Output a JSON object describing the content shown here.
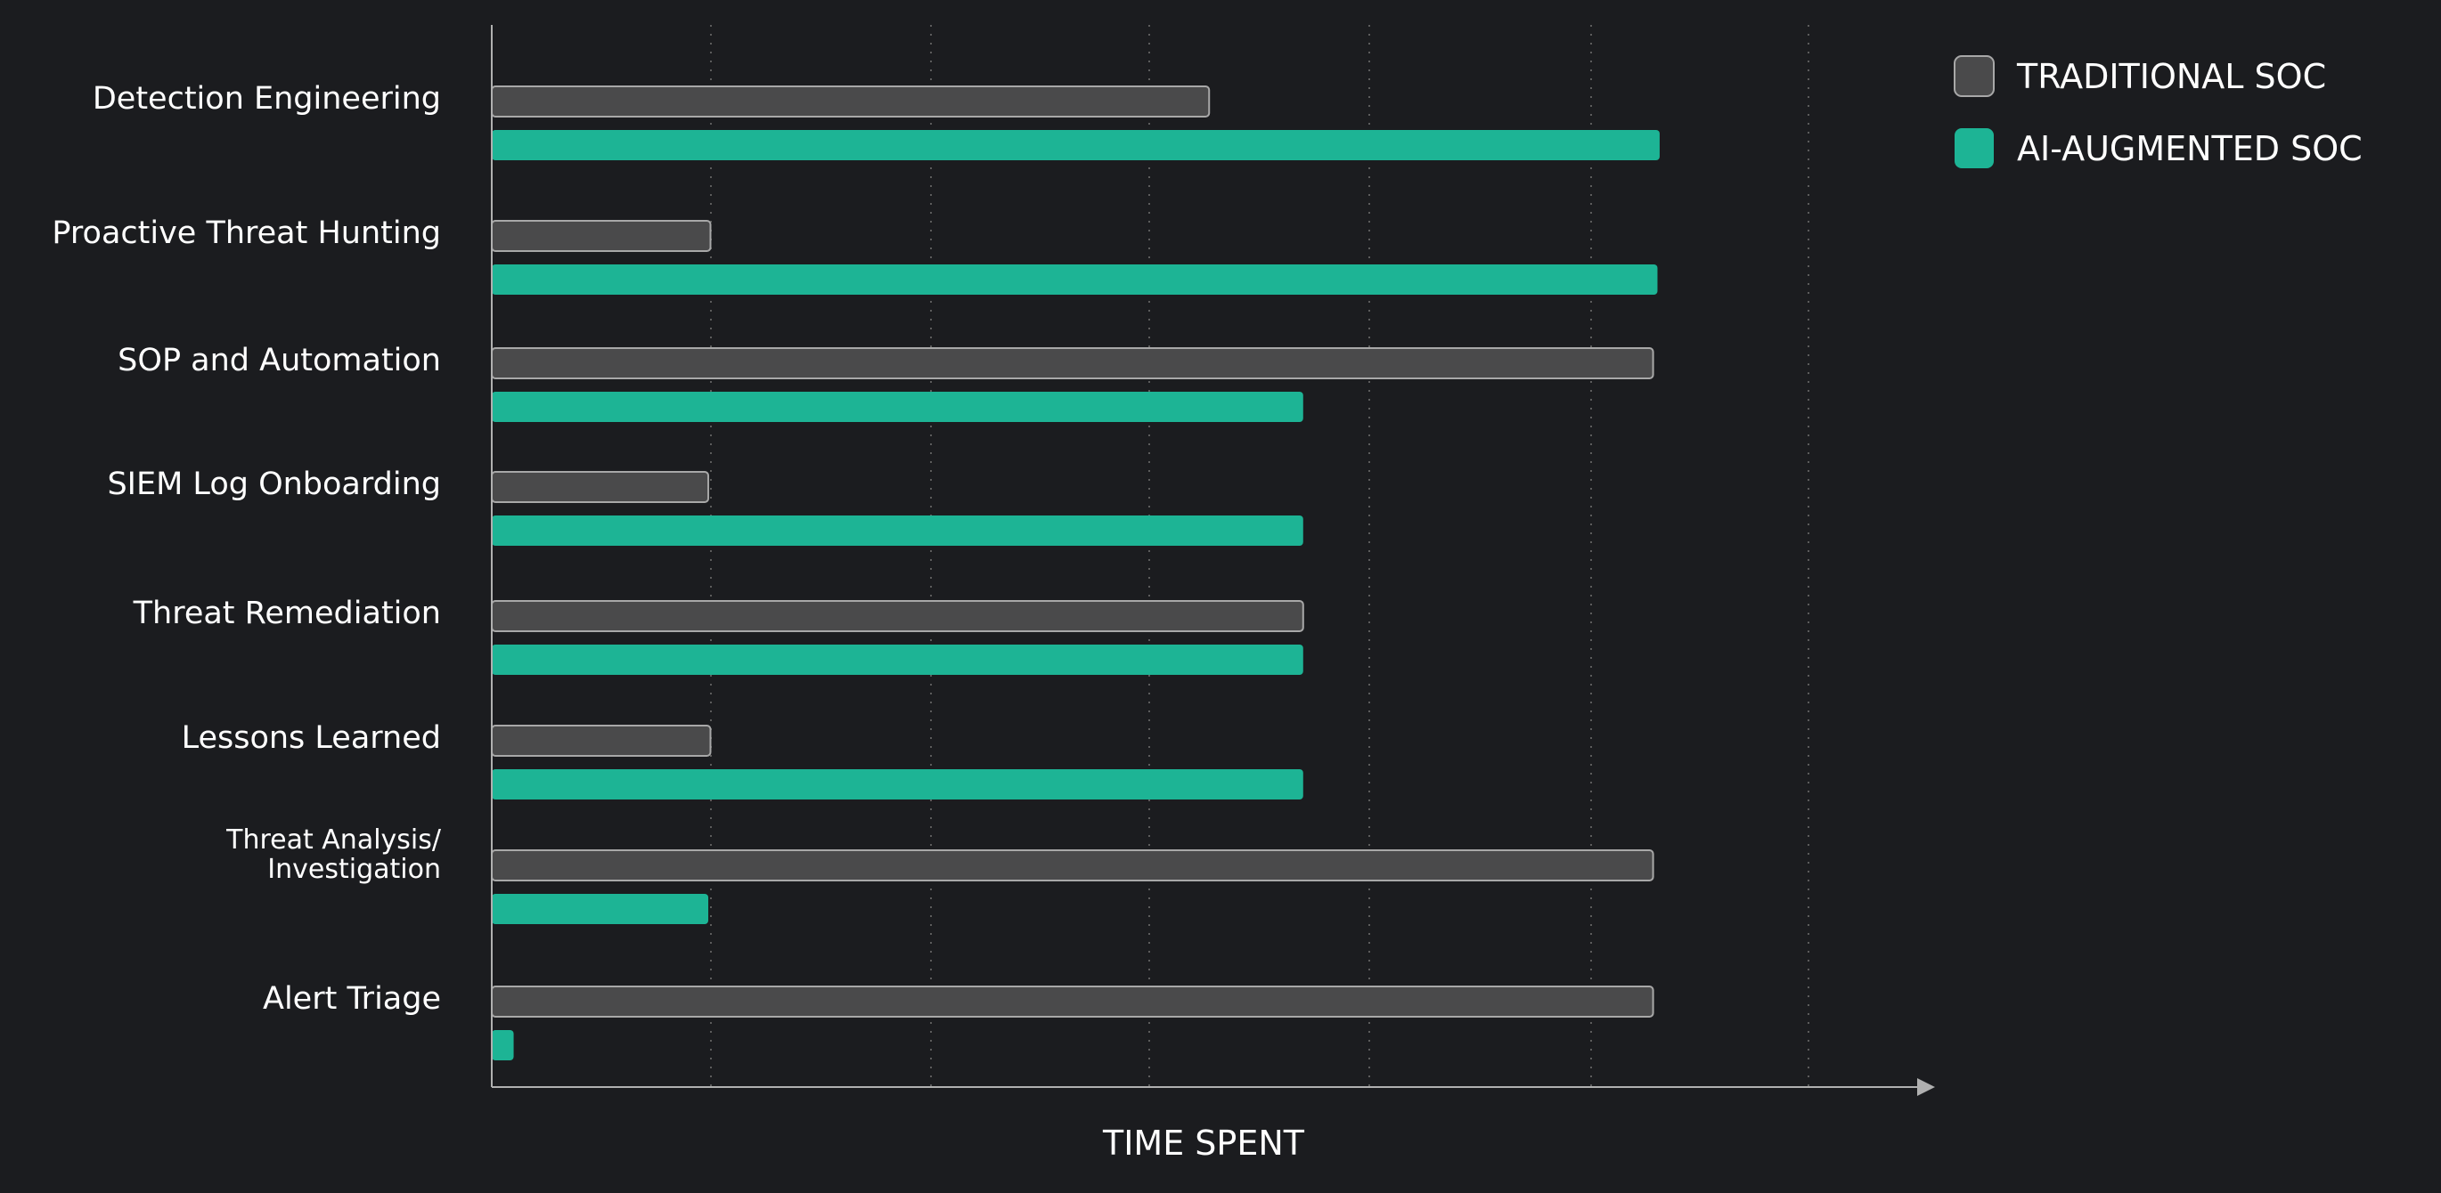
{
  "chart_data": {
    "type": "bar",
    "orientation": "horizontal",
    "xlabel": "TIME SPENT",
    "ylabel": "",
    "xlim": [
      0,
      6.55
    ],
    "x_ticks_labeled": false,
    "grid": {
      "x": true,
      "y": false,
      "style": "dotted"
    },
    "legend_position": "top-right",
    "categories": [
      "Detection Engineering",
      "Proactive Threat Hunting",
      "SOP and Automation",
      "SIEM Log Onboarding",
      "Threat Remediation",
      "Lessons Learned",
      "Threat Analysis/\nInvestigation",
      "Alert Triage"
    ],
    "series": [
      {
        "name": "TRADITIONAL SOC",
        "color": "#4a4a4b",
        "border_color": "#a8a8a8",
        "values": [
          3.28,
          1.0,
          5.31,
          0.99,
          3.71,
          1.0,
          5.31,
          5.31
        ]
      },
      {
        "name": "AI-AUGMENTED SOC",
        "color": "#1db495",
        "border_color": "#1db495",
        "values": [
          5.34,
          5.33,
          3.71,
          3.71,
          3.71,
          3.71,
          0.99,
          0.1
        ]
      }
    ]
  },
  "colors": {
    "background": "#1b1c1f",
    "axis": "#b0b0b0",
    "grid": "#5c5c5c",
    "text": "#ffffff"
  }
}
